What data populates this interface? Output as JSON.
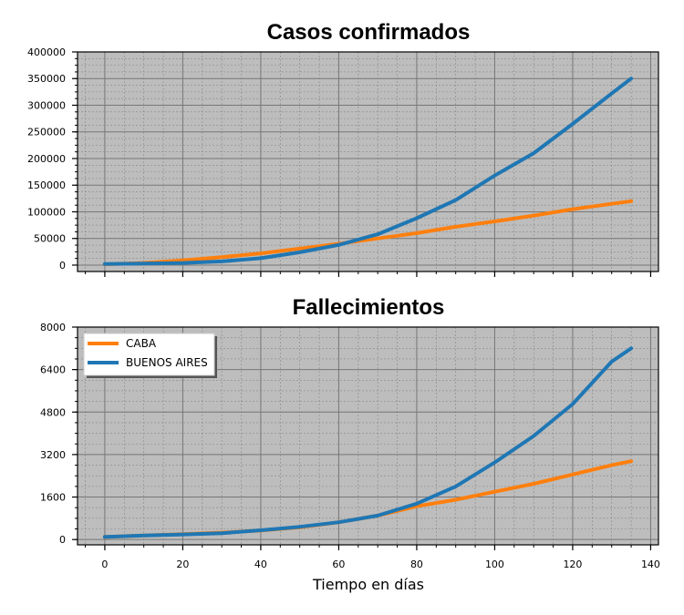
{
  "colors": {
    "caba": "#ff7f0e",
    "buenos_aires": "#1f77b4",
    "plot_bg": "#bdbdbd",
    "grid_major": "#777777",
    "grid_minor": "#888888"
  },
  "chart_data": [
    {
      "type": "line",
      "title": "Casos confirmados",
      "xlabel": "",
      "ylabel": "",
      "xlim": [
        -7,
        142
      ],
      "ylim": [
        -12000,
        400000
      ],
      "x_ticks": [
        0,
        20,
        40,
        60,
        80,
        100,
        120,
        140
      ],
      "x_tick_labels_visible": false,
      "y_ticks": [
        0,
        50000,
        100000,
        150000,
        200000,
        250000,
        300000,
        350000,
        400000
      ],
      "y_tick_labels": [
        "0",
        "50000",
        "100000",
        "150000",
        "200000",
        "250000",
        "300000",
        "350000",
        "400000"
      ],
      "grid": true,
      "x": [
        0,
        10,
        20,
        30,
        40,
        50,
        60,
        70,
        80,
        90,
        100,
        110,
        120,
        130,
        135
      ],
      "series": [
        {
          "name": "CABA",
          "color": "#ff7f0e",
          "values": [
            1500,
            4000,
            9000,
            15000,
            22000,
            31000,
            40000,
            50000,
            60000,
            72000,
            82000,
            93000,
            105000,
            115000,
            120000
          ]
        },
        {
          "name": "BUENOS AIRES",
          "color": "#1f77b4",
          "values": [
            2000,
            2800,
            4000,
            7000,
            13000,
            24000,
            38000,
            58000,
            88000,
            122000,
            168000,
            210000,
            265000,
            322000,
            350000
          ]
        }
      ]
    },
    {
      "type": "line",
      "title": "Fallecimientos",
      "xlabel": "Tiempo en días",
      "ylabel": "",
      "xlim": [
        -7,
        142
      ],
      "ylim": [
        -200,
        8000
      ],
      "x_ticks": [
        0,
        20,
        40,
        60,
        80,
        100,
        120,
        140
      ],
      "x_tick_labels": [
        "0",
        "20",
        "40",
        "60",
        "80",
        "100",
        "120",
        "140"
      ],
      "y_ticks": [
        0,
        1600,
        3200,
        4800,
        6400,
        8000
      ],
      "y_tick_labels": [
        "0",
        "1600",
        "3200",
        "4800",
        "6400",
        "8000"
      ],
      "grid": true,
      "legend": "top-left",
      "x": [
        0,
        10,
        20,
        30,
        40,
        50,
        60,
        70,
        80,
        90,
        100,
        110,
        120,
        130,
        135
      ],
      "series": [
        {
          "name": "CABA",
          "color": "#ff7f0e",
          "values": [
            100,
            150,
            200,
            260,
            340,
            460,
            650,
            900,
            1250,
            1500,
            1800,
            2100,
            2450,
            2800,
            2950
          ]
        },
        {
          "name": "BUENOS AIRES",
          "color": "#1f77b4",
          "values": [
            100,
            150,
            190,
            240,
            350,
            480,
            650,
            900,
            1350,
            2000,
            2900,
            3900,
            5100,
            6700,
            7200
          ]
        }
      ]
    }
  ]
}
